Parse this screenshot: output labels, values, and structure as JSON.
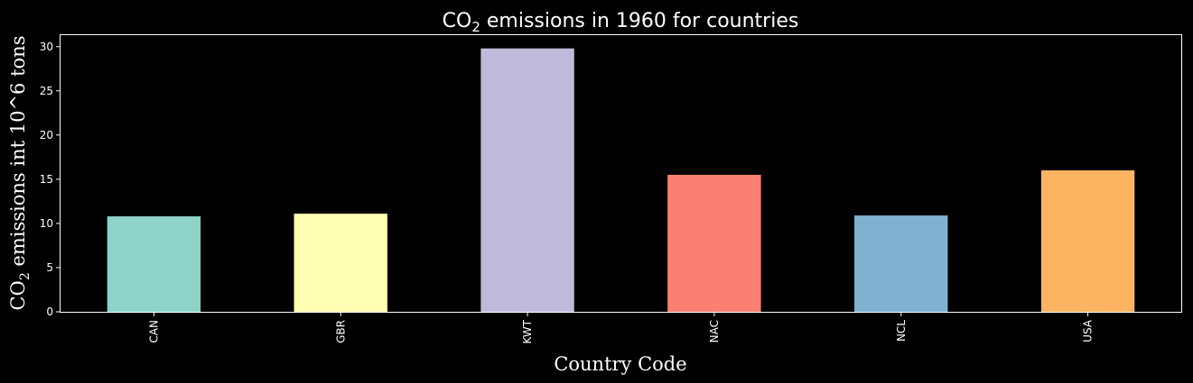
{
  "chart_data": {
    "type": "bar",
    "title_main": "CO",
    "title_sub": "2",
    "title_rest": " emissions in 1960 for countries",
    "ylabel_main": "CO",
    "ylabel_sub": "2",
    "ylabel_rest": " emissions int 10^6 tons",
    "xlabel": "Country Code",
    "categories": [
      "CAN",
      "GBR",
      "KWT",
      "NAC",
      "NCL",
      "USA"
    ],
    "values": [
      10.8,
      11.1,
      29.8,
      15.5,
      10.9,
      16.0
    ],
    "colors": [
      "#8dd3c7",
      "#ffffb3",
      "#bebada",
      "#fb8072",
      "#80b1d3",
      "#fdb462"
    ],
    "yticks": [
      "0",
      "5",
      "10",
      "15",
      "20",
      "25",
      "30"
    ],
    "ylim": [
      0,
      31.3
    ],
    "grid": false,
    "legend": "none"
  }
}
